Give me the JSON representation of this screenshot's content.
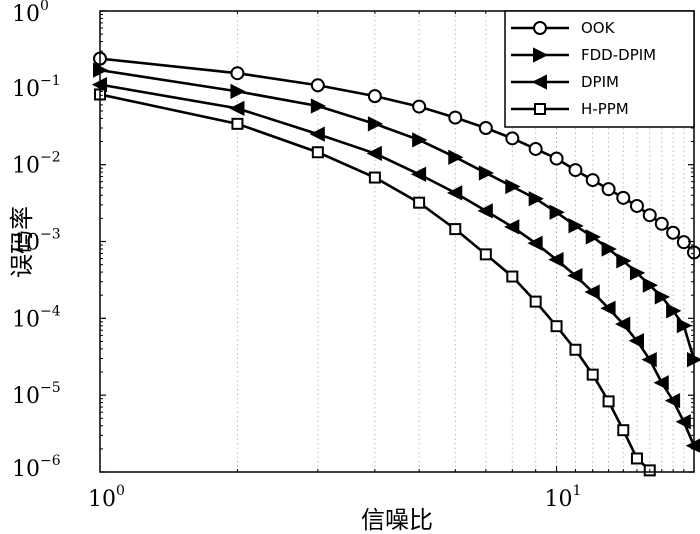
{
  "chart_data": {
    "type": "line",
    "xlabel": "信噪比",
    "ylabel": "误码率",
    "x_scale": "log",
    "y_scale": "log",
    "xlim": [
      1,
      20
    ],
    "ylim": [
      1e-06,
      1
    ],
    "x_ticks": [
      {
        "base": "10",
        "exp": "0",
        "value": 1
      },
      {
        "base": "10",
        "exp": "1",
        "value": 10
      }
    ],
    "y_ticks": [
      {
        "base": "10",
        "exp": "0",
        "value": 1
      },
      {
        "base": "10",
        "exp": "−1",
        "value": 0.1
      },
      {
        "base": "10",
        "exp": "−2",
        "value": 0.01
      },
      {
        "base": "10",
        "exp": "−3",
        "value": 0.001
      },
      {
        "base": "10",
        "exp": "−4",
        "value": 0.0001
      },
      {
        "base": "10",
        "exp": "−5",
        "value": 1e-05
      },
      {
        "base": "10",
        "exp": "−6",
        "value": 1e-06
      }
    ],
    "grid_x": "minor-dotted",
    "legend_position": "top-right",
    "series": [
      {
        "name": "OOK",
        "marker": "circle",
        "points": [
          [
            1,
            0.24
          ],
          [
            2,
            0.155
          ],
          [
            3,
            0.108
          ],
          [
            4,
            0.078
          ],
          [
            5,
            0.057
          ],
          [
            6,
            0.041
          ],
          [
            7,
            0.03
          ],
          [
            8,
            0.022
          ],
          [
            9,
            0.016
          ],
          [
            10,
            0.012
          ],
          [
            11,
            0.0085
          ],
          [
            12,
            0.0063
          ],
          [
            13,
            0.0048
          ],
          [
            14,
            0.0037
          ],
          [
            15,
            0.0029
          ],
          [
            16,
            0.0022
          ],
          [
            17,
            0.0017
          ],
          [
            18,
            0.0013
          ],
          [
            19,
            0.00098
          ],
          [
            20,
            0.00072
          ]
        ]
      },
      {
        "name": "FDD-DPIM",
        "marker": "triangle-right",
        "points": [
          [
            1,
            0.17
          ],
          [
            2,
            0.09
          ],
          [
            3,
            0.058
          ],
          [
            4,
            0.034
          ],
          [
            5,
            0.021
          ],
          [
            6,
            0.0125
          ],
          [
            7,
            0.0078
          ],
          [
            8,
            0.0052
          ],
          [
            9,
            0.0036
          ],
          [
            10,
            0.0024
          ],
          [
            11,
            0.0016
          ],
          [
            12,
            0.00115
          ],
          [
            13,
            0.0008
          ],
          [
            14,
            0.00056
          ],
          [
            15,
            0.00039
          ],
          [
            16,
            0.00027
          ],
          [
            17,
            0.00019
          ],
          [
            18,
            0.000125
          ],
          [
            19,
            8.05e-05
          ],
          [
            20,
            2.9e-05
          ]
        ]
      },
      {
        "name": "DPIM",
        "marker": "triangle-left",
        "points": [
          [
            1,
            0.11
          ],
          [
            2,
            0.054
          ],
          [
            3,
            0.025
          ],
          [
            4,
            0.014
          ],
          [
            5,
            0.0075
          ],
          [
            6,
            0.0043
          ],
          [
            7,
            0.0025
          ],
          [
            8,
            0.00155
          ],
          [
            9,
            0.00095
          ],
          [
            10,
            0.00058
          ],
          [
            11,
            0.00036
          ],
          [
            12,
            0.00022
          ],
          [
            13,
            0.000135
          ],
          [
            14,
            8.4e-05
          ],
          [
            15,
            5.1e-05
          ],
          [
            16,
            2.9e-05
          ],
          [
            17,
            1.45e-05
          ],
          [
            18,
            8.5e-06
          ],
          [
            19,
            4.5e-06
          ],
          [
            20,
            2.2e-06
          ]
        ]
      },
      {
        "name": "H-PPM",
        "marker": "square",
        "points": [
          [
            1,
            0.082
          ],
          [
            2,
            0.034
          ],
          [
            3,
            0.0145
          ],
          [
            4,
            0.0068
          ],
          [
            5,
            0.0032
          ],
          [
            6,
            0.00145
          ],
          [
            7,
            0.00068
          ],
          [
            8,
            0.00035
          ],
          [
            9,
            0.000165
          ],
          [
            10,
            7.9e-05
          ],
          [
            11,
            3.9e-05
          ],
          [
            12,
            1.85e-05
          ],
          [
            13,
            8.3e-06
          ],
          [
            14,
            3.5e-06
          ],
          [
            15,
            1.5e-06
          ],
          [
            16,
            1.05e-06
          ]
        ]
      }
    ]
  }
}
